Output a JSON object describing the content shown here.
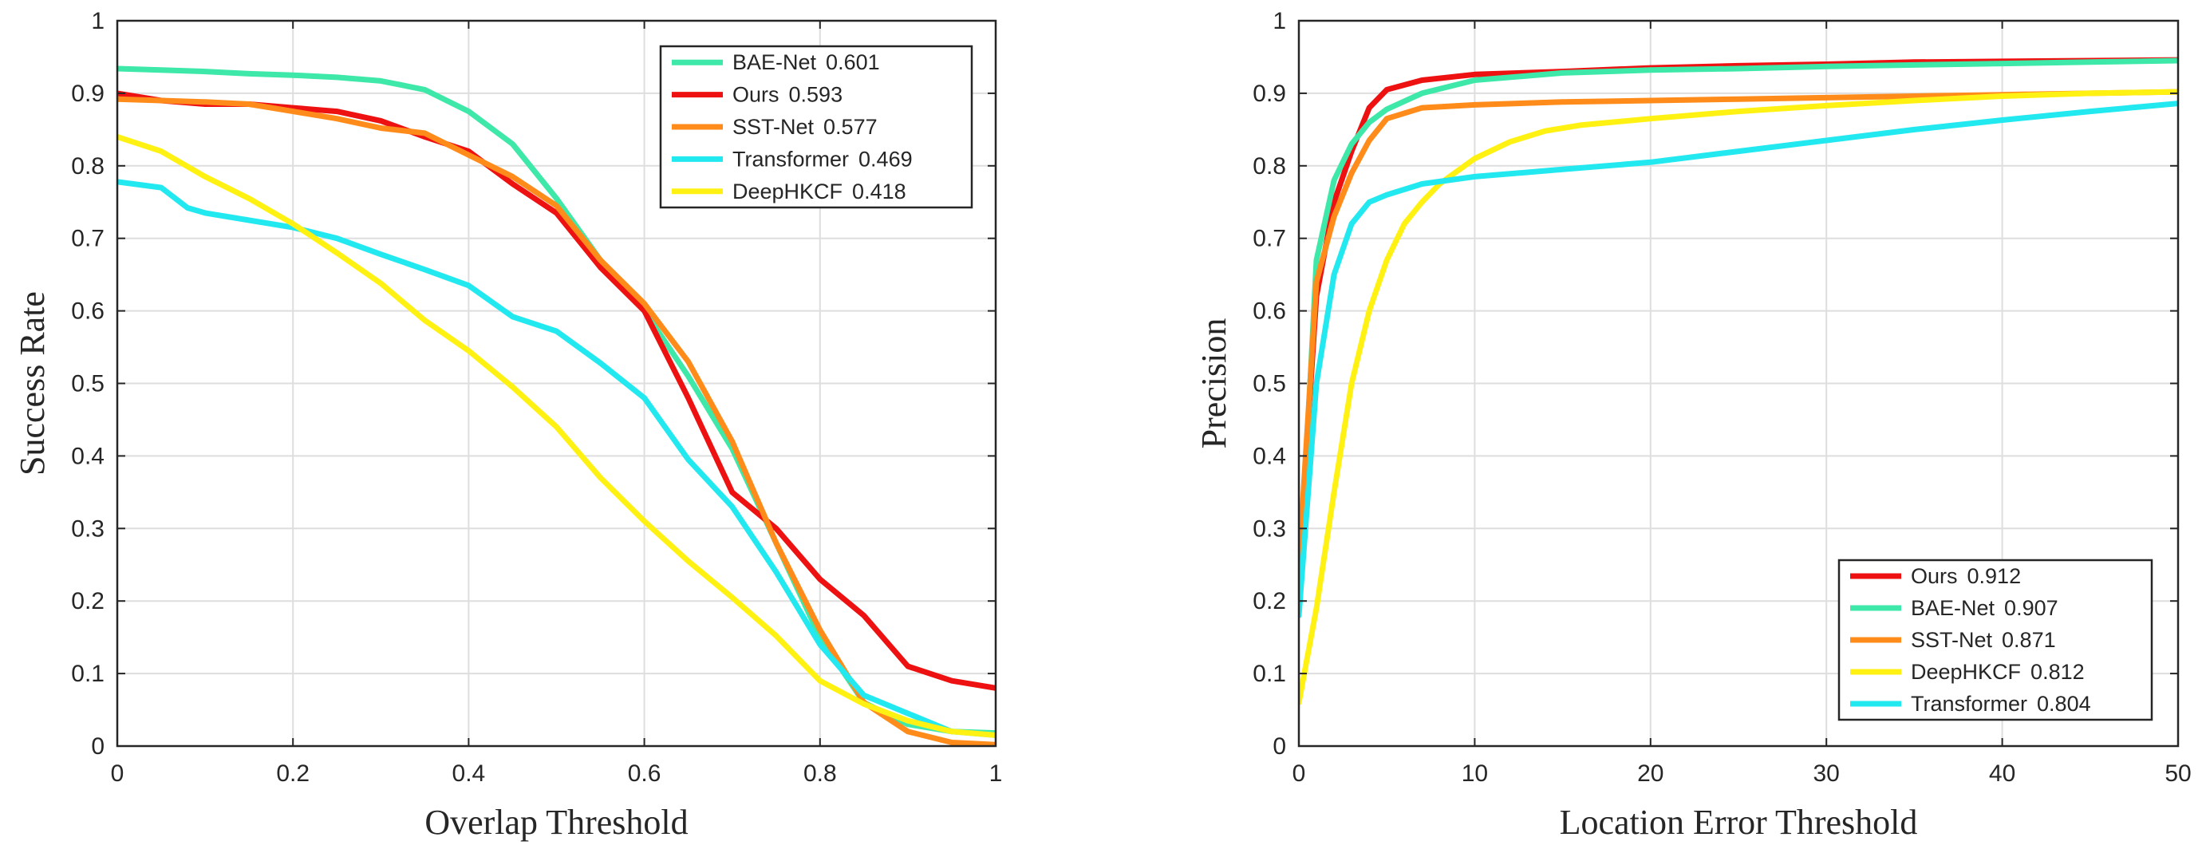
{
  "chart_data": [
    {
      "type": "line",
      "xlabel": "Overlap Threshold",
      "ylabel": "Success Rate",
      "xlim": [
        0,
        1
      ],
      "ylim": [
        0,
        1
      ],
      "xticks": [
        "0",
        "0.2",
        "0.4",
        "0.6",
        "0.8",
        "1"
      ],
      "yticks": [
        "0",
        "0.1",
        "0.2",
        "0.3",
        "0.4",
        "0.5",
        "0.6",
        "0.7",
        "0.8",
        "0.9",
        "1"
      ],
      "grid": true,
      "legend_position": "top-right",
      "series": [
        {
          "name": "BAE-Net",
          "score": "0.601",
          "color": "#3de8a8",
          "x": [
            0,
            0.05,
            0.1,
            0.15,
            0.2,
            0.25,
            0.3,
            0.35,
            0.4,
            0.45,
            0.5,
            0.55,
            0.6,
            0.65,
            0.7,
            0.75,
            0.8,
            0.85,
            0.9,
            0.95,
            1.0
          ],
          "y": [
            0.934,
            0.932,
            0.93,
            0.927,
            0.925,
            0.922,
            0.917,
            0.905,
            0.875,
            0.83,
            0.755,
            0.67,
            0.6,
            0.51,
            0.41,
            0.28,
            0.15,
            0.06,
            0.03,
            0.02,
            0.018
          ]
        },
        {
          "name": "Ours",
          "score": "0.593",
          "color": "#ee1111",
          "x": [
            0,
            0.05,
            0.1,
            0.15,
            0.2,
            0.25,
            0.3,
            0.35,
            0.4,
            0.45,
            0.5,
            0.55,
            0.6,
            0.65,
            0.7,
            0.75,
            0.8,
            0.85,
            0.9,
            0.95,
            1.0
          ],
          "y": [
            0.9,
            0.89,
            0.885,
            0.885,
            0.88,
            0.875,
            0.862,
            0.84,
            0.82,
            0.775,
            0.735,
            0.66,
            0.6,
            0.48,
            0.35,
            0.3,
            0.23,
            0.18,
            0.11,
            0.09,
            0.08
          ]
        },
        {
          "name": "SST-Net",
          "score": "0.577",
          "color": "#ff8c1a",
          "x": [
            0,
            0.05,
            0.1,
            0.15,
            0.2,
            0.25,
            0.3,
            0.35,
            0.4,
            0.45,
            0.5,
            0.55,
            0.6,
            0.65,
            0.7,
            0.75,
            0.8,
            0.85,
            0.9,
            0.95,
            1.0
          ],
          "y": [
            0.892,
            0.89,
            0.888,
            0.885,
            0.875,
            0.865,
            0.852,
            0.845,
            0.815,
            0.785,
            0.745,
            0.67,
            0.61,
            0.53,
            0.42,
            0.28,
            0.16,
            0.06,
            0.02,
            0.005,
            0.002
          ]
        },
        {
          "name": "Transformer",
          "score": "0.469",
          "color": "#22e8f0",
          "x": [
            0,
            0.05,
            0.08,
            0.1,
            0.15,
            0.2,
            0.25,
            0.3,
            0.35,
            0.4,
            0.45,
            0.5,
            0.55,
            0.6,
            0.65,
            0.7,
            0.75,
            0.8,
            0.85,
            0.9,
            0.95,
            1.0
          ],
          "y": [
            0.778,
            0.77,
            0.742,
            0.735,
            0.725,
            0.715,
            0.7,
            0.678,
            0.657,
            0.635,
            0.592,
            0.572,
            0.528,
            0.48,
            0.395,
            0.33,
            0.24,
            0.14,
            0.07,
            0.045,
            0.02,
            0.015
          ]
        },
        {
          "name": "DeepHKCF",
          "score": "0.418",
          "color": "#fff213",
          "x": [
            0,
            0.05,
            0.1,
            0.15,
            0.2,
            0.25,
            0.3,
            0.35,
            0.4,
            0.45,
            0.5,
            0.55,
            0.6,
            0.65,
            0.7,
            0.75,
            0.8,
            0.85,
            0.9,
            0.95,
            1.0
          ],
          "y": [
            0.84,
            0.82,
            0.785,
            0.755,
            0.72,
            0.68,
            0.638,
            0.587,
            0.545,
            0.495,
            0.44,
            0.37,
            0.31,
            0.255,
            0.205,
            0.152,
            0.09,
            0.058,
            0.035,
            0.02,
            0.015
          ]
        }
      ]
    },
    {
      "type": "line",
      "xlabel": "Location Error Threshold",
      "ylabel": "Precision",
      "xlim": [
        0,
        50
      ],
      "ylim": [
        0,
        1
      ],
      "xticks": [
        "0",
        "10",
        "20",
        "30",
        "40",
        "50"
      ],
      "yticks": [
        "0",
        "0.1",
        "0.2",
        "0.3",
        "0.4",
        "0.5",
        "0.6",
        "0.7",
        "0.8",
        "0.9",
        "1"
      ],
      "grid": true,
      "legend_position": "bottom-right",
      "series": [
        {
          "name": "Ours",
          "score": "0.912",
          "color": "#ee1111",
          "x": [
            0,
            1,
            2,
            3,
            4,
            5,
            7,
            10,
            15,
            20,
            25,
            30,
            35,
            40,
            45,
            50
          ],
          "y": [
            0.25,
            0.62,
            0.75,
            0.82,
            0.88,
            0.905,
            0.918,
            0.926,
            0.93,
            0.935,
            0.938,
            0.94,
            0.943,
            0.944,
            0.945,
            0.946
          ]
        },
        {
          "name": "BAE-Net",
          "score": "0.907",
          "color": "#3de8a8",
          "x": [
            0,
            1,
            2,
            3,
            4,
            5,
            7,
            10,
            15,
            20,
            25,
            30,
            35,
            40,
            45,
            50
          ],
          "y": [
            0.2,
            0.67,
            0.78,
            0.83,
            0.86,
            0.878,
            0.9,
            0.918,
            0.928,
            0.932,
            0.934,
            0.937,
            0.939,
            0.941,
            0.943,
            0.945
          ]
        },
        {
          "name": "SST-Net",
          "score": "0.871",
          "color": "#ff8c1a",
          "x": [
            0,
            1,
            2,
            3,
            4,
            5,
            7,
            10,
            15,
            20,
            25,
            30,
            35,
            40,
            45,
            50
          ],
          "y": [
            0.25,
            0.64,
            0.73,
            0.79,
            0.835,
            0.865,
            0.88,
            0.884,
            0.888,
            0.89,
            0.892,
            0.894,
            0.896,
            0.898,
            0.9,
            0.902
          ]
        },
        {
          "name": "DeepHKCF",
          "score": "0.812",
          "color": "#fff213",
          "x": [
            0,
            1,
            2,
            3,
            4,
            5,
            6,
            7,
            8,
            10,
            12,
            14,
            16,
            20,
            25,
            30,
            35,
            40,
            45,
            50
          ],
          "y": [
            0.06,
            0.19,
            0.35,
            0.5,
            0.6,
            0.67,
            0.72,
            0.75,
            0.775,
            0.81,
            0.833,
            0.848,
            0.856,
            0.865,
            0.875,
            0.883,
            0.89,
            0.896,
            0.9,
            0.902
          ]
        },
        {
          "name": "Transformer",
          "score": "0.804",
          "color": "#22e8f0",
          "x": [
            0,
            1,
            2,
            3,
            4,
            5,
            7,
            10,
            15,
            20,
            25,
            30,
            35,
            40,
            45,
            50
          ],
          "y": [
            0.18,
            0.5,
            0.65,
            0.72,
            0.75,
            0.76,
            0.775,
            0.785,
            0.795,
            0.805,
            0.82,
            0.835,
            0.85,
            0.863,
            0.875,
            0.886
          ]
        }
      ]
    }
  ]
}
